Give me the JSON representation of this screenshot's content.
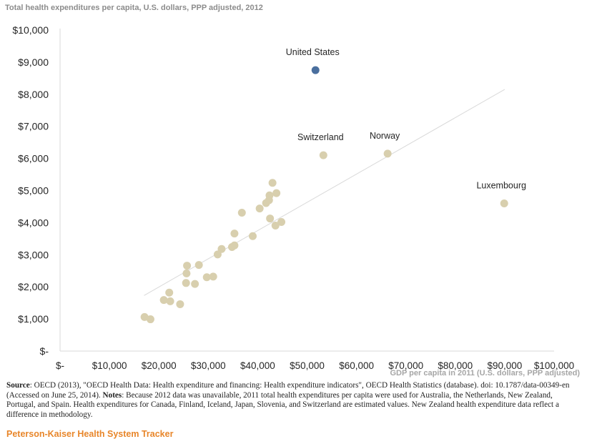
{
  "chart_data": {
    "type": "scatter",
    "title": "Total health expenditures per capita, U.S. dollars, PPP adjusted, 2012",
    "xlabel": "GDP per capita in 2011 (U.S. dollars, PPP adjusted)",
    "ylabel": "",
    "xlim": [
      0,
      100000
    ],
    "ylim": [
      0,
      10000
    ],
    "x_tick_labels": [
      "$-",
      "$10,000",
      "$20,000",
      "$30,000",
      "$40,000",
      "$50,000",
      "$60,000",
      "$70,000",
      "$80,000",
      "$90,000",
      "$100,000"
    ],
    "y_tick_labels": [
      "$-",
      "$1,000",
      "$2,000",
      "$3,000",
      "$4,000",
      "$5,000",
      "$6,000",
      "$7,000",
      "$8,000",
      "$9,000",
      "$10,000"
    ],
    "grid": false,
    "trendline": {
      "x": [
        17000,
        90000
      ],
      "y": [
        1730,
        8150
      ]
    },
    "colors": {
      "points": "#d8cfae",
      "highlight": "#4a6f9e",
      "trendline": "#d9d9d9"
    },
    "labeled_points": [
      {
        "label": "United States",
        "x": 51700,
        "y": 8750,
        "highlight": true
      },
      {
        "label": "Switzerland",
        "x": 53300,
        "y": 6100
      },
      {
        "label": "Norway",
        "x": 66300,
        "y": 6150
      },
      {
        "label": "Luxembourg",
        "x": 89900,
        "y": 4600
      }
    ],
    "points": [
      {
        "x": 17100,
        "y": 1060
      },
      {
        "x": 18300,
        "y": 990
      },
      {
        "x": 21000,
        "y": 1590
      },
      {
        "x": 22100,
        "y": 1820
      },
      {
        "x": 22300,
        "y": 1550
      },
      {
        "x": 24300,
        "y": 1460
      },
      {
        "x": 25500,
        "y": 2120
      },
      {
        "x": 25600,
        "y": 2420
      },
      {
        "x": 25700,
        "y": 2660
      },
      {
        "x": 27300,
        "y": 2090
      },
      {
        "x": 28100,
        "y": 2680
      },
      {
        "x": 29700,
        "y": 2300
      },
      {
        "x": 31000,
        "y": 2320
      },
      {
        "x": 31900,
        "y": 3010
      },
      {
        "x": 32700,
        "y": 3180
      },
      {
        "x": 34800,
        "y": 3240
      },
      {
        "x": 35300,
        "y": 3290
      },
      {
        "x": 35300,
        "y": 3660
      },
      {
        "x": 36800,
        "y": 4310
      },
      {
        "x": 39000,
        "y": 3580
      },
      {
        "x": 40400,
        "y": 4440
      },
      {
        "x": 41700,
        "y": 4610
      },
      {
        "x": 42300,
        "y": 4700
      },
      {
        "x": 42400,
        "y": 4850
      },
      {
        "x": 42500,
        "y": 4130
      },
      {
        "x": 43000,
        "y": 5240
      },
      {
        "x": 43600,
        "y": 3910
      },
      {
        "x": 43800,
        "y": 4920
      },
      {
        "x": 44800,
        "y": 4020
      }
    ]
  },
  "source_label": "Source",
  "source_text": ": OECD (2013), \"OECD Health Data: Health expenditure and financing: Health expenditure indicators\", OECD Health Statistics (database). doi: 10.1787/data-00349-en (Accessed on June 25, 2014).  ",
  "notes_label": "Notes",
  "notes_text": ": Because 2012 data was unavailable, 2011  total health expenditures per capita were used for Australia, the Netherlands, New Zealand, Portugal, and Spain.  Health expenditures for Canada, Finland, Iceland, Japan, Slovenia, and Switzerland are estimated values.  New Zealand health expenditure data reflect a difference in methodology.",
  "brand": "Peterson-Kaiser Health System Tracker"
}
